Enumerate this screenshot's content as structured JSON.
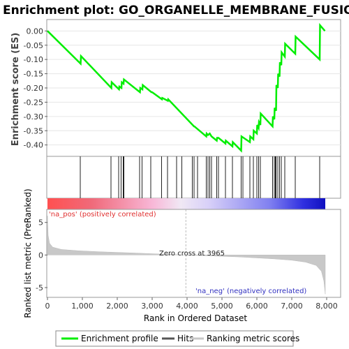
{
  "chart_data": {
    "type": "line",
    "title": "Enrichment plot: GO_ORGANELLE_MEMBRANE_FUSION",
    "top_panel": {
      "ylabel": "Enrichment score (ES)",
      "ylim": [
        -0.44,
        0.04
      ],
      "yticks": [
        "0.00",
        "-0.05",
        "-0.10",
        "-0.15",
        "-0.20",
        "-0.25",
        "-0.30",
        "-0.35",
        "-0.40"
      ],
      "ytick_values": [
        0.0,
        -0.05,
        -0.1,
        -0.15,
        -0.2,
        -0.25,
        -0.3,
        -0.35,
        -0.4
      ],
      "series": [
        {
          "name": "Enrichment profile",
          "color": "#00ee00",
          "x": [
            0,
            950,
            960,
            1830,
            1840,
            2050,
            2060,
            2120,
            2130,
            2180,
            2190,
            2650,
            2660,
            2720,
            2730,
            2980,
            3000,
            3280,
            3290,
            3450,
            3460,
            4200,
            4210,
            4550,
            4560,
            4600,
            4650,
            4700,
            4850,
            4860,
            4900,
            5100,
            5110,
            5300,
            5310,
            5550,
            5560,
            5800,
            5810,
            5900,
            5910,
            6000,
            6010,
            6050,
            6060,
            6100,
            6110,
            6450,
            6460,
            6500,
            6510,
            6550,
            6560,
            6600,
            6610,
            6650,
            6660,
            6700,
            6710,
            6800,
            6810,
            7100,
            7110,
            7800,
            7810,
            7950
          ],
          "y": [
            0.0,
            -0.115,
            -0.088,
            -0.2,
            -0.18,
            -0.205,
            -0.195,
            -0.2,
            -0.18,
            -0.185,
            -0.17,
            -0.215,
            -0.2,
            -0.205,
            -0.19,
            -0.215,
            -0.215,
            -0.24,
            -0.235,
            -0.245,
            -0.24,
            -0.335,
            -0.335,
            -0.37,
            -0.36,
            -0.365,
            -0.36,
            -0.37,
            -0.385,
            -0.375,
            -0.375,
            -0.395,
            -0.385,
            -0.405,
            -0.39,
            -0.42,
            -0.37,
            -0.39,
            -0.37,
            -0.38,
            -0.35,
            -0.36,
            -0.33,
            -0.34,
            -0.32,
            -0.33,
            -0.29,
            -0.335,
            -0.3,
            -0.31,
            -0.27,
            -0.28,
            -0.19,
            -0.2,
            -0.15,
            -0.16,
            -0.11,
            -0.12,
            -0.075,
            -0.09,
            -0.045,
            -0.08,
            -0.02,
            -0.1,
            0.02,
            0.0
          ]
        }
      ]
    },
    "hits_panel": {
      "name": "Hits",
      "positions": [
        940,
        1820,
        2040,
        2110,
        2170,
        2190,
        2640,
        2710,
        2960,
        3270,
        3440,
        3700,
        3850,
        4150,
        4200,
        4300,
        4550,
        4600,
        4650,
        4700,
        4850,
        4900,
        5100,
        5300,
        5550,
        5600,
        5800,
        5900,
        6000,
        6050,
        6100,
        6450,
        6500,
        6530,
        6550,
        6600,
        6650,
        6700,
        6800,
        7100,
        7800
      ]
    },
    "bottom_panel": {
      "ylabel": "Ranked list metric (PreRanked)",
      "xlabel": "Rank in Ordered Dataset",
      "xlim": [
        0,
        8400
      ],
      "ylim": [
        -6.5,
        7
      ],
      "xticks": [
        "0",
        "1,000",
        "2,000",
        "3,000",
        "4,000",
        "5,000",
        "6,000",
        "7,000",
        "8,000"
      ],
      "xtick_values": [
        0,
        1000,
        2000,
        3000,
        4000,
        5000,
        6000,
        7000,
        8000
      ],
      "yticks": [
        "5",
        "0",
        "-5"
      ],
      "ytick_values": [
        5,
        0,
        -5
      ],
      "series": [
        {
          "name": "Ranking metric scores",
          "color": "#c0c0c0",
          "x": [
            0,
            20,
            60,
            150,
            400,
            900,
            1500,
            2000,
            2500,
            3000,
            3500,
            3965,
            4500,
            5000,
            5500,
            6000,
            6500,
            7000,
            7400,
            7700,
            7850,
            7920,
            7960
          ],
          "y": [
            6.0,
            3.0,
            1.8,
            1.2,
            0.85,
            0.65,
            0.5,
            0.4,
            0.3,
            0.2,
            0.1,
            0.0,
            -0.1,
            -0.2,
            -0.3,
            -0.45,
            -0.6,
            -0.8,
            -1.1,
            -1.6,
            -2.5,
            -4.0,
            -6.0
          ]
        }
      ],
      "zero_cross": 3965,
      "annotations": {
        "zero_cross_label": "Zero cross at 3965",
        "pos_label": "'na_pos' (positively correlated)",
        "neg_label": "'na_neg' (negatively correlated)"
      }
    },
    "legend": {
      "placement": "bottom",
      "entries": [
        {
          "label": "Enrichment profile",
          "color": "#00ee00"
        },
        {
          "label": "Hits",
          "color": "#555555"
        },
        {
          "label": "Ranking metric scores",
          "color": "#c8c8c8"
        }
      ]
    }
  }
}
